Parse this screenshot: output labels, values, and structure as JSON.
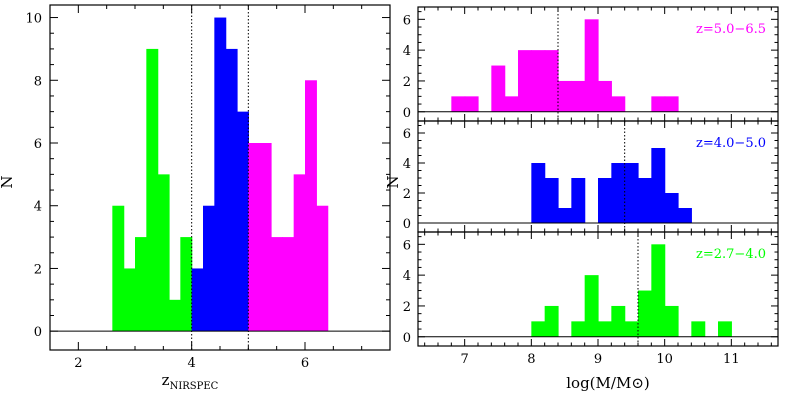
{
  "chart_data": [
    {
      "type": "bar",
      "panel": "redshift-histogram",
      "xlabel": "z",
      "xlabel_sub": "NIRSPEC",
      "ylabel": "N",
      "xlim": [
        1.5,
        7.5
      ],
      "ylim": [
        -0.6,
        10.4
      ],
      "xticks": [
        2,
        4,
        6
      ],
      "yticks": [
        0,
        2,
        4,
        6,
        8,
        10
      ],
      "bin_width": 0.2,
      "dotted_lines_x": [
        4.0,
        5.0
      ],
      "series": [
        {
          "bins_start": [
            2.6,
            2.8,
            3.0,
            3.2,
            3.4,
            3.6,
            3.8
          ],
          "values": [
            4,
            2,
            3,
            9,
            5,
            1,
            3
          ],
          "color": "#00ff00"
        },
        {
          "bins_start": [
            4.0,
            4.2,
            4.4,
            4.6,
            4.8
          ],
          "values": [
            2,
            4,
            10,
            9,
            7
          ],
          "color": "#0000ff"
        },
        {
          "bins_start": [
            5.0,
            5.2,
            5.4,
            5.6,
            5.8,
            6.0,
            6.2
          ],
          "values": [
            6,
            6,
            3,
            3,
            5,
            8,
            4
          ],
          "color": "#ff00ff"
        }
      ]
    },
    {
      "type": "bar",
      "panel": "mass-histogram-high-z",
      "label": "z=5.0−6.5",
      "color": "#ff00ff",
      "ylim": [
        -0.6,
        6.8
      ],
      "xlim": [
        6.3,
        11.7
      ],
      "yticks": [
        0,
        2,
        4,
        6
      ],
      "bin_width": 0.2,
      "dotted_line_x": 8.4,
      "bins_start": [
        6.8,
        7.0,
        7.2,
        7.4,
        7.6,
        7.8,
        8.0,
        8.2,
        8.4,
        8.6,
        8.8,
        9.0,
        9.2,
        9.4,
        9.6,
        9.8,
        10.0
      ],
      "values": [
        1,
        1,
        0,
        3,
        1,
        4,
        4,
        4,
        2,
        2,
        6,
        2,
        1,
        0,
        0,
        1,
        1
      ]
    },
    {
      "type": "bar",
      "panel": "mass-histogram-mid-z",
      "label": "z=4.0−5.0",
      "color": "#0000ff",
      "ylim": [
        -0.6,
        6.8
      ],
      "xlim": [
        6.3,
        11.7
      ],
      "yticks": [
        0,
        2,
        4,
        6
      ],
      "bin_width": 0.2,
      "dotted_line_x": 9.4,
      "bins_start": [
        8.0,
        8.2,
        8.4,
        8.6,
        8.8,
        9.0,
        9.2,
        9.4,
        9.6,
        9.8,
        10.0,
        10.2
      ],
      "values": [
        4,
        3,
        1,
        3,
        0,
        3,
        4,
        4,
        3,
        5,
        2,
        1
      ]
    },
    {
      "type": "bar",
      "panel": "mass-histogram-low-z",
      "label": "z=2.7−4.0",
      "color": "#00ff00",
      "xlabel": "log(M/M",
      "xlabel_suffix": "⊙)",
      "ylabel": "N",
      "ylim": [
        -0.6,
        6.8
      ],
      "xlim": [
        6.3,
        11.7
      ],
      "xticks": [
        7,
        8,
        9,
        10,
        11
      ],
      "yticks": [
        0,
        2,
        4,
        6
      ],
      "bin_width": 0.2,
      "dotted_line_x": 9.6,
      "bins_start": [
        8.0,
        8.2,
        8.4,
        8.6,
        8.8,
        9.0,
        9.2,
        9.4,
        9.6,
        9.8,
        10.0,
        10.2,
        10.4,
        10.6,
        10.8
      ],
      "values": [
        1,
        2,
        0,
        1,
        4,
        1,
        2,
        1,
        3,
        6,
        2,
        0,
        1,
        0,
        1
      ]
    }
  ]
}
